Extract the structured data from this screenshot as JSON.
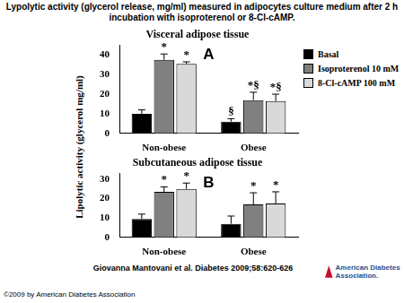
{
  "title": "Lypolytic activity (glycerol release, mg/ml) measured in adipocytes culture medium after 2 h incubation with isoproterenol or 8-Cl-cAMP.",
  "y_label": "Lipolytic activity (glycerol mg/ml)",
  "source": "Giovanna Mantovani et al. Diabetes 2009;58:620-626",
  "copyright": "©2009 by American Diabetes Association",
  "logo": "American Diabetes Association.",
  "chart_data": [
    {
      "type": "bar",
      "label": "A",
      "title": "Visceral adipose tissue",
      "categories": [
        "Non-obese",
        "Obese"
      ],
      "series": [
        {
          "name": "Basal",
          "color": "#000000",
          "values": [
            10,
            6
          ],
          "errors": [
            2,
            1.5
          ],
          "annotations": [
            null,
            "§"
          ]
        },
        {
          "name": "Isoproterenol 10 mM",
          "color": "#808080",
          "values": [
            37.5,
            17
          ],
          "errors": [
            3,
            4
          ],
          "annotations": [
            "*",
            "*§"
          ]
        },
        {
          "name": "8-Cl-cAMP 100 mM",
          "color": "#d9d9d9",
          "values": [
            35.5,
            16.5
          ],
          "errors": [
            1,
            3.5
          ],
          "annotations": [
            "*",
            "*§"
          ]
        }
      ],
      "ylim": [
        0,
        45
      ],
      "yticks": [
        0,
        10,
        20,
        30,
        40
      ],
      "grid": false,
      "legend": "top-right"
    },
    {
      "type": "bar",
      "label": "B",
      "title": "Subcutaneous adipose tissue",
      "categories": [
        "Non-obese",
        "Obese"
      ],
      "series": [
        {
          "name": "Basal",
          "color": "#000000",
          "values": [
            9.5,
            7
          ],
          "errors": [
            2.5,
            4
          ],
          "annotations": [
            null,
            null
          ]
        },
        {
          "name": "Isoproterenol 10 mM",
          "color": "#808080",
          "values": [
            23.5,
            17
          ],
          "errors": [
            2.5,
            6
          ],
          "annotations": [
            "*",
            "*"
          ]
        },
        {
          "name": "8-Cl-cAMP 100 mM",
          "color": "#d9d9d9",
          "values": [
            25,
            17.5
          ],
          "errors": [
            3,
            6
          ],
          "annotations": [
            "*",
            "*"
          ]
        }
      ],
      "ylim": [
        0,
        33
      ],
      "yticks": [
        0,
        10,
        20,
        30
      ],
      "grid": false
    }
  ]
}
